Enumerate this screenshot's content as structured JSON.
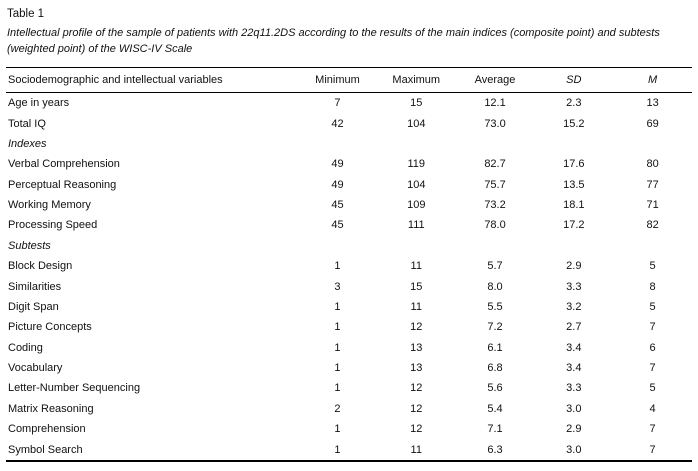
{
  "table": {
    "label": "Table 1",
    "caption": "Intellectual profile of the sample of patients with 22q11.2DS according to the results of the main indices (composite point) and subtests (weighted point) of the WISC-IV Scale",
    "columns": [
      {
        "label": "Sociodemographic and intellectual variables",
        "italic": false
      },
      {
        "label": "Minimum",
        "italic": false
      },
      {
        "label": "Maximum",
        "italic": false
      },
      {
        "label": "Average",
        "italic": false
      },
      {
        "label": "SD",
        "italic": true
      },
      {
        "label": "M",
        "italic": true
      }
    ],
    "rows": [
      {
        "type": "data",
        "label": "Age in years",
        "values": [
          "7",
          "15",
          "12.1",
          "2.3",
          "13"
        ]
      },
      {
        "type": "data",
        "label": "Total IQ",
        "values": [
          "42",
          "104",
          "73.0",
          "15.2",
          "69"
        ]
      },
      {
        "type": "section",
        "label": "Indexes",
        "values": []
      },
      {
        "type": "data",
        "label": "Verbal Comprehension",
        "values": [
          "49",
          "119",
          "82.7",
          "17.6",
          "80"
        ]
      },
      {
        "type": "data",
        "label": "Perceptual Reasoning",
        "values": [
          "49",
          "104",
          "75.7",
          "13.5",
          "77"
        ]
      },
      {
        "type": "data",
        "label": "Working Memory",
        "values": [
          "45",
          "109",
          "73.2",
          "18.1",
          "71"
        ]
      },
      {
        "type": "data",
        "label": "Processing Speed",
        "values": [
          "45",
          "111",
          "78.0",
          "17.2",
          "82"
        ]
      },
      {
        "type": "section",
        "label": "Subtests",
        "values": []
      },
      {
        "type": "data",
        "label": "Block Design",
        "values": [
          "1",
          "11",
          "5.7",
          "2.9",
          "5"
        ]
      },
      {
        "type": "data",
        "label": "Similarities",
        "values": [
          "3",
          "15",
          "8.0",
          "3.3",
          "8"
        ]
      },
      {
        "type": "data",
        "label": "Digit Span",
        "values": [
          "1",
          "11",
          "5.5",
          "3.2",
          "5"
        ]
      },
      {
        "type": "data",
        "label": "Picture Concepts",
        "values": [
          "1",
          "12",
          "7.2",
          "2.7",
          "7"
        ]
      },
      {
        "type": "data",
        "label": "Coding",
        "values": [
          "1",
          "13",
          "6.1",
          "3.4",
          "6"
        ]
      },
      {
        "type": "data",
        "label": "Vocabulary",
        "values": [
          "1",
          "13",
          "6.8",
          "3.4",
          "7"
        ]
      },
      {
        "type": "data",
        "label": "Letter-Number Sequencing",
        "values": [
          "1",
          "12",
          "5.6",
          "3.3",
          "5"
        ]
      },
      {
        "type": "data",
        "label": "Matrix Reasoning",
        "values": [
          "2",
          "12",
          "5.4",
          "3.0",
          "4"
        ]
      },
      {
        "type": "data",
        "label": "Comprehension",
        "values": [
          "1",
          "12",
          "7.1",
          "2.9",
          "7"
        ]
      },
      {
        "type": "data",
        "label": "Symbol Search",
        "values": [
          "1",
          "11",
          "6.3",
          "3.0",
          "7"
        ]
      }
    ]
  }
}
